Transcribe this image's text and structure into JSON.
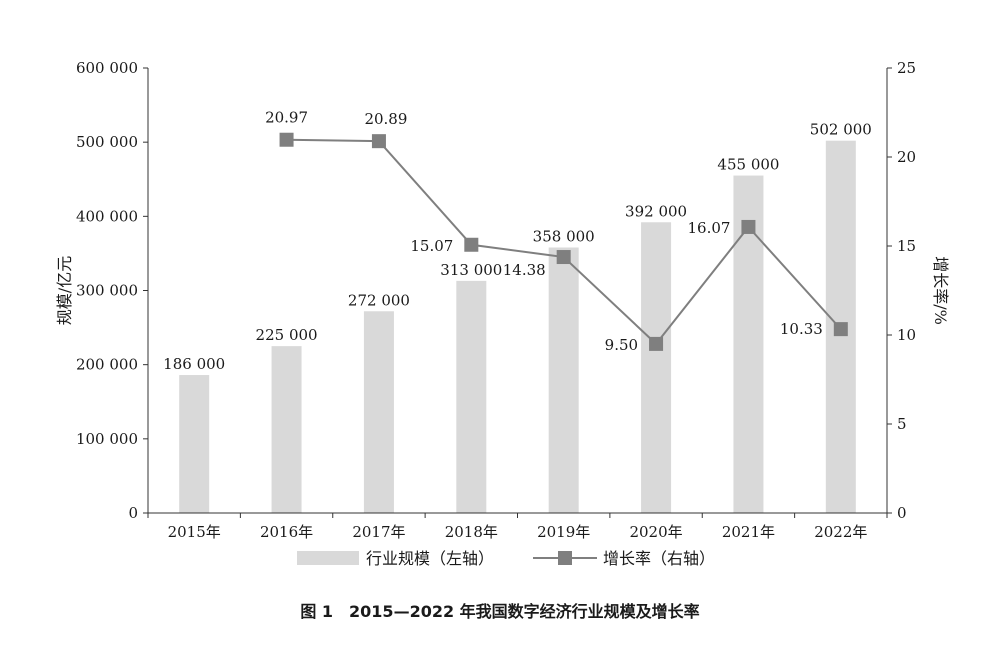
{
  "chart_data": {
    "type": "bar",
    "categories": [
      "2015年",
      "2016年",
      "2017年",
      "2018年",
      "2019年",
      "2020年",
      "2021年",
      "2022年"
    ],
    "series": [
      {
        "name": "行业规模（左轴）",
        "type": "bar",
        "axis": "left",
        "values": [
          186000,
          225000,
          272000,
          313000,
          358000,
          392000,
          455000,
          502000
        ],
        "labels": [
          "186 000",
          "225 000",
          "272 000",
          "313 000",
          "358 000",
          "392 000",
          "455 000",
          "502 000"
        ]
      },
      {
        "name": "增长率（右轴）",
        "type": "line",
        "axis": "right",
        "values": [
          null,
          20.97,
          20.89,
          15.07,
          14.38,
          9.5,
          16.07,
          10.33
        ],
        "labels": [
          "",
          "20.97",
          "20.89",
          "15.07",
          "14.38",
          "9.50",
          "16.07",
          "10.33"
        ]
      }
    ],
    "ylabel": "规模/亿元",
    "ylabel_right": "增长率/%",
    "ylim": [
      0,
      600000
    ],
    "ylim_right": [
      0,
      25
    ],
    "yticks": [
      "0",
      "100 000",
      "200 000",
      "300 000",
      "400 000",
      "500 000",
      "600 000"
    ],
    "yticks_right": [
      "0",
      "5",
      "10",
      "15",
      "20",
      "25"
    ],
    "grid": false,
    "legend": "bottom",
    "title": "图 1　2015—2022 年我国数字经济行业规模及增长率"
  },
  "colors": {
    "bar": "#d9d9d9",
    "line": "#7f7f7f",
    "marker": "#7f7f7f",
    "axis": "#333333",
    "text": "#1a1a1a"
  }
}
